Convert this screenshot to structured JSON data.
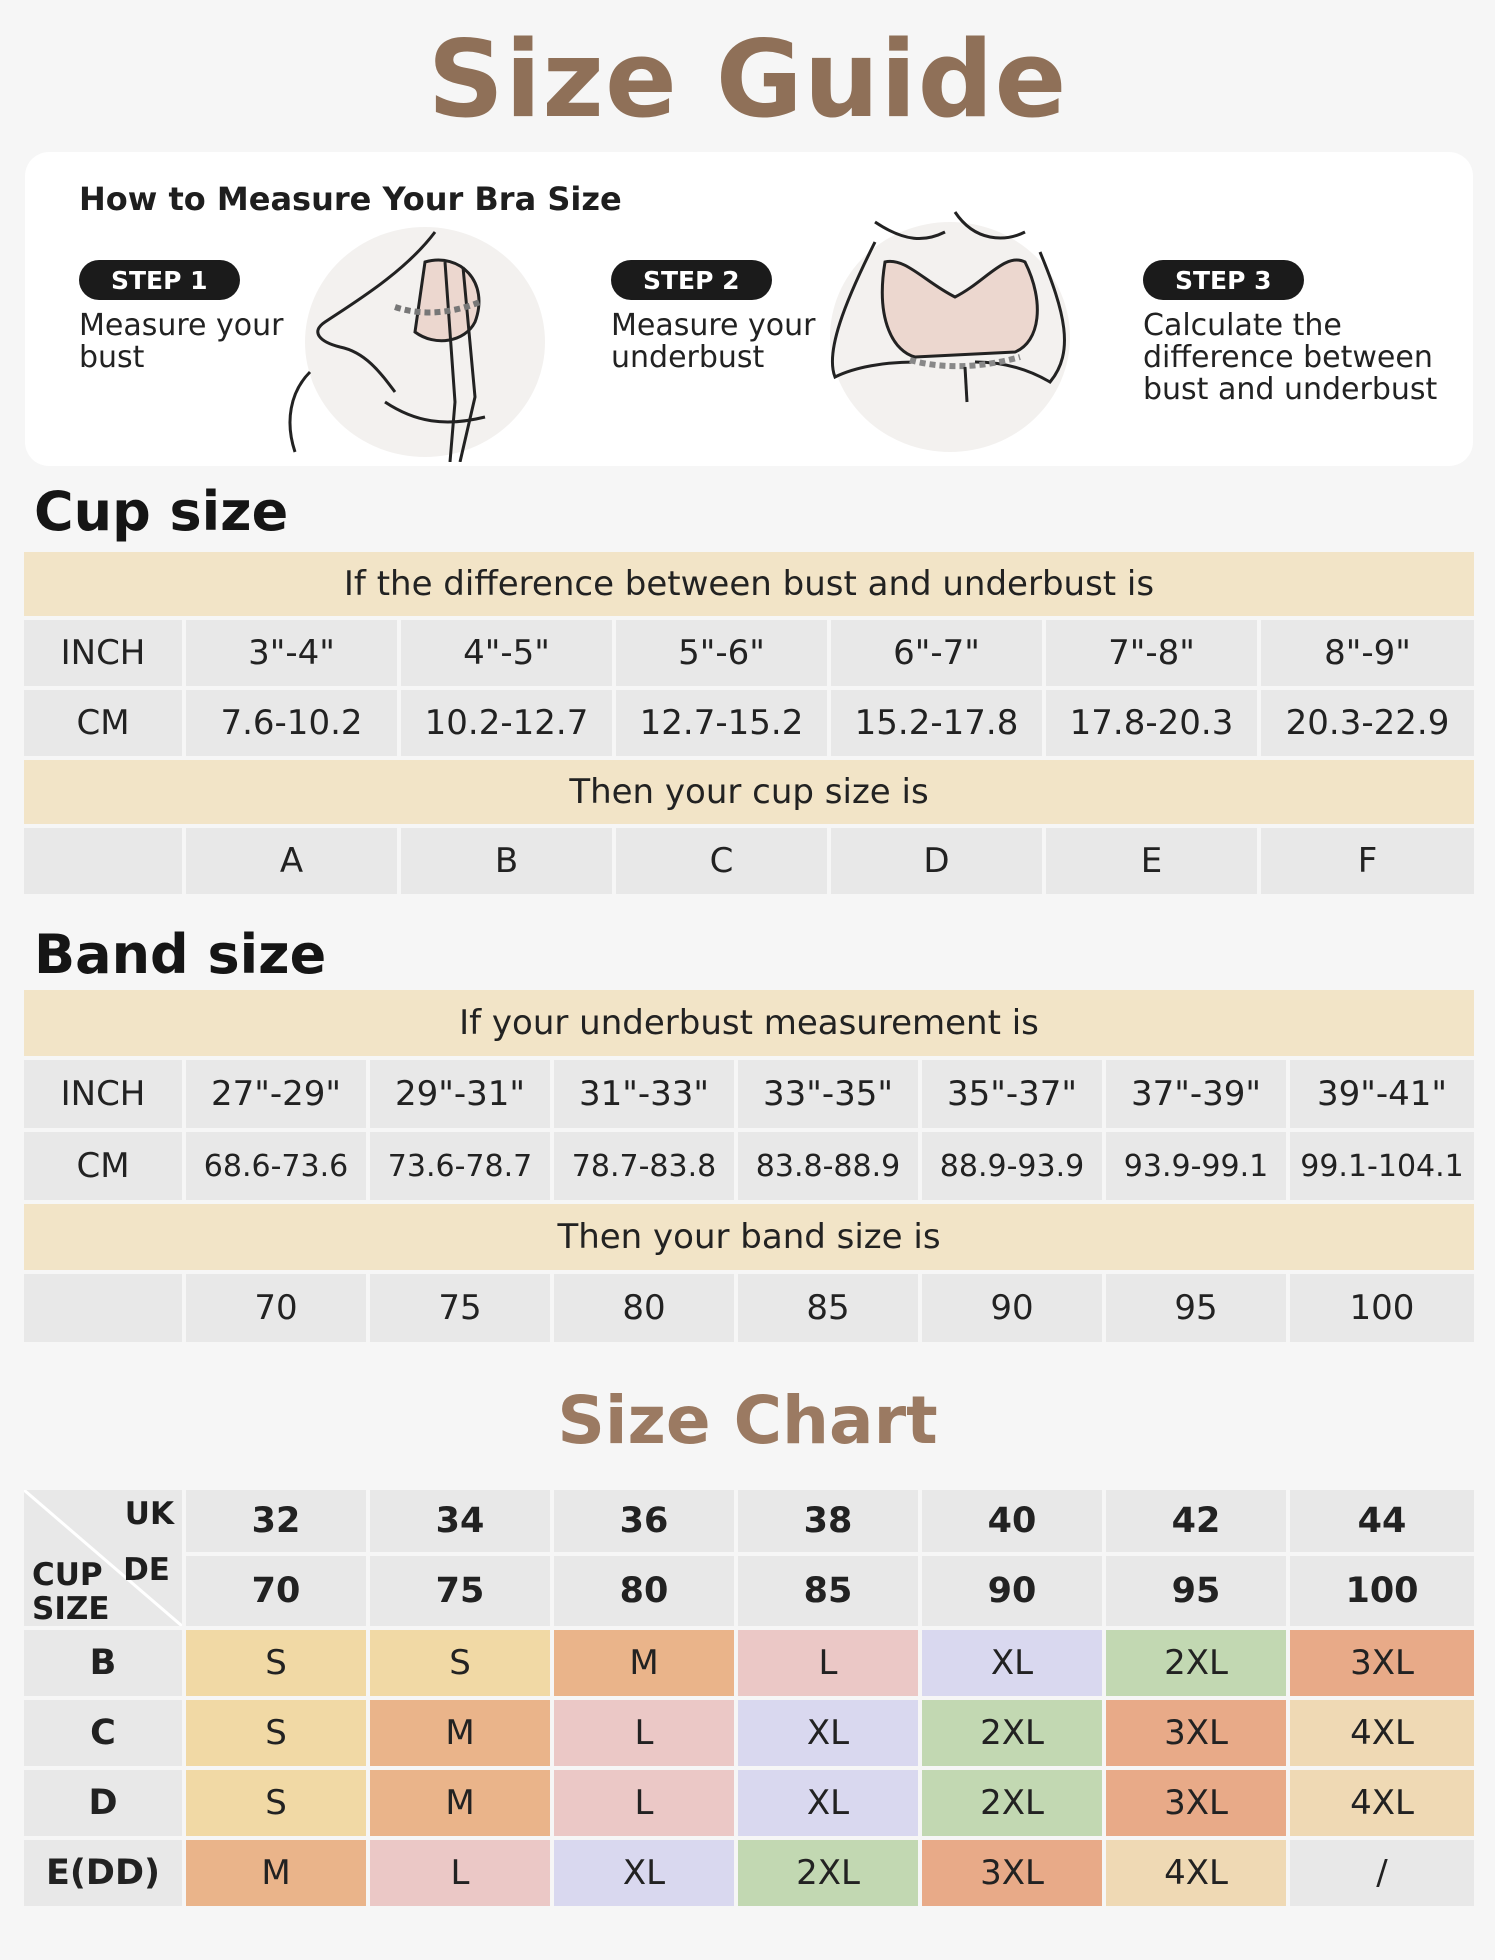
{
  "page": {
    "title": "Size Guide"
  },
  "measure": {
    "heading": "How to Measure Your Bra Size",
    "steps": [
      {
        "badge": "STEP 1",
        "text": "Measure your\nbust"
      },
      {
        "badge": "STEP 2",
        "text": "Measure your\nunderbust"
      },
      {
        "badge": "STEP 3",
        "text": "Calculate the\ndifference between\nbust and underbust"
      }
    ]
  },
  "cup": {
    "title": "Cup size",
    "banner_top": "If the difference between bust and underbust is",
    "inch_label": "INCH",
    "cm_label": "CM",
    "inch": [
      "3\"-4\"",
      "4\"-5\"",
      "5\"-6\"",
      "6\"-7\"",
      "7\"-8\"",
      "8\"-9\""
    ],
    "cm": [
      "7.6-10.2",
      "10.2-12.7",
      "12.7-15.2",
      "15.2-17.8",
      "17.8-20.3",
      "20.3-22.9"
    ],
    "banner_result": "Then your cup size is",
    "sizes": [
      "A",
      "B",
      "C",
      "D",
      "E",
      "F"
    ]
  },
  "band": {
    "title": "Band size",
    "banner_top": "If your underbust measurement is",
    "inch_label": "INCH",
    "cm_label": "CM",
    "inch": [
      "27\"-29\"",
      "29\"-31\"",
      "31\"-33\"",
      "33\"-35\"",
      "35\"-37\"",
      "37\"-39\"",
      "39\"-41\""
    ],
    "cm": [
      "68.6-73.6",
      "73.6-78.7",
      "78.7-83.8",
      "83.8-88.9",
      "88.9-93.9",
      "93.9-99.1",
      "99.1-104.1"
    ],
    "banner_result": "Then your band size is",
    "sizes": [
      "70",
      "75",
      "80",
      "85",
      "90",
      "95",
      "100"
    ]
  },
  "size_chart": {
    "title": "Size Chart",
    "uk_label": "UK",
    "de_label": "DE",
    "cup_label": "CUP SIZE",
    "uk": [
      "32",
      "34",
      "36",
      "38",
      "40",
      "42",
      "44"
    ],
    "de": [
      "70",
      "75",
      "80",
      "85",
      "90",
      "95",
      "100"
    ],
    "rows": [
      {
        "cup": "B",
        "sizes": [
          "S",
          "S",
          "M",
          "L",
          "XL",
          "2XL",
          "3XL"
        ]
      },
      {
        "cup": "C",
        "sizes": [
          "S",
          "M",
          "L",
          "XL",
          "2XL",
          "3XL",
          "4XL"
        ]
      },
      {
        "cup": "D",
        "sizes": [
          "S",
          "M",
          "L",
          "XL",
          "2XL",
          "3XL",
          "4XL"
        ]
      },
      {
        "cup": "E(DD)",
        "sizes": [
          "M",
          "L",
          "XL",
          "2XL",
          "3XL",
          "4XL",
          "/"
        ]
      }
    ],
    "colors": {
      "S": "#f1d9a5",
      "M": "#eab48a",
      "L": "#ebc8c6",
      "XL": "#d9d8ef",
      "2XL": "#c2d8b2",
      "3XL": "#e8aa88",
      "4XL": "#efd9b4",
      "/": "#e8e8e8"
    }
  }
}
